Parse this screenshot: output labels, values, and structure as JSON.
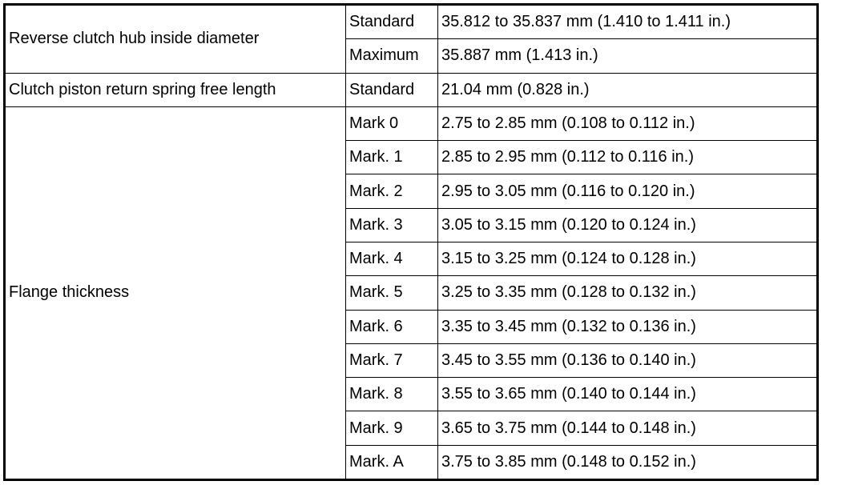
{
  "rows": [
    {
      "item": "Reverse clutch hub inside diameter",
      "specs": [
        {
          "condition": "Standard",
          "value": "35.812 to 35.837 mm (1.410 to 1.411 in.)"
        },
        {
          "condition": "Maximum",
          "value": "35.887 mm (1.413 in.)"
        }
      ]
    },
    {
      "item": "Clutch piston return spring free length",
      "specs": [
        {
          "condition": "Standard",
          "value": "21.04 mm (0.828 in.)"
        }
      ]
    },
    {
      "item": "Flange thickness",
      "specs": [
        {
          "condition": "Mark 0",
          "value": "2.75 to 2.85 mm (0.108 to 0.112 in.)"
        },
        {
          "condition": "Mark. 1",
          "value": "2.85 to 2.95 mm (0.112 to 0.116 in.)"
        },
        {
          "condition": "Mark. 2",
          "value": "2.95 to 3.05 mm (0.116 to 0.120 in.)"
        },
        {
          "condition": "Mark. 3",
          "value": "3.05 to 3.15 mm (0.120 to 0.124 in.)"
        },
        {
          "condition": "Mark. 4",
          "value": "3.15 to 3.25 mm (0.124 to 0.128 in.)"
        },
        {
          "condition": "Mark. 5",
          "value": "3.25 to 3.35 mm (0.128 to 0.132 in.)"
        },
        {
          "condition": "Mark. 6",
          "value": "3.35 to 3.45 mm (0.132 to 0.136 in.)"
        },
        {
          "condition": "Mark. 7",
          "value": "3.45 to 3.55 mm (0.136 to 0.140 in.)"
        },
        {
          "condition": "Mark. 8",
          "value": "3.55 to 3.65 mm (0.140 to 0.144 in.)"
        },
        {
          "condition": "Mark. 9",
          "value": "3.65 to 3.75 mm (0.144 to 0.148 in.)"
        },
        {
          "condition": "Mark. A",
          "value": "3.75 to 3.85 mm (0.148 to 0.152 in.)"
        }
      ]
    }
  ]
}
